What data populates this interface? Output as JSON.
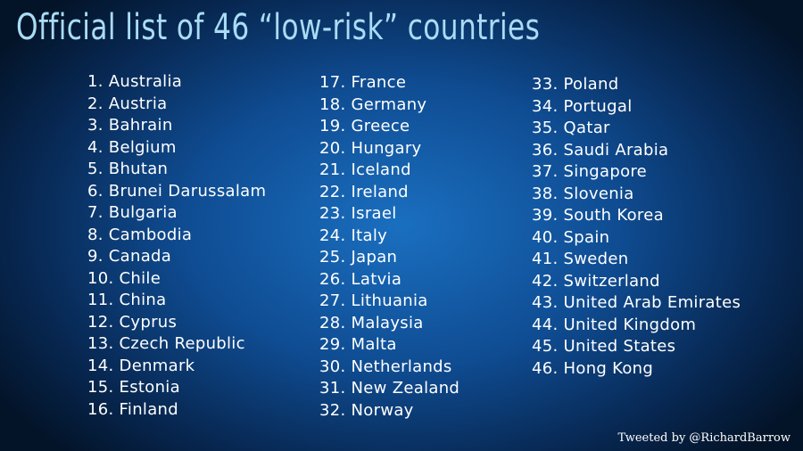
{
  "title": "Official list of 46 “low-risk” countries",
  "columns": [
    {
      "items": [
        "1. Australia",
        "2. Austria",
        "3. Bahrain",
        "4. Belgium",
        "5. Bhutan",
        "6. Brunei Darussalam",
        "7. Bulgaria",
        "8. Cambodia",
        "9. Canada",
        "10. Chile",
        "11. China",
        "12. Cyprus",
        "13. Czech Republic",
        "14. Denmark",
        "15. Estonia",
        "16. Finland"
      ]
    },
    {
      "items": [
        "17. France",
        "18. Germany",
        "19. Greece",
        "20. Hungary",
        "21. Iceland",
        "22. Ireland",
        "23. Israel",
        "24. Italy",
        "25. Japan",
        "26. Latvia",
        "27. Lithuania",
        "28. Malaysia",
        "29. Malta",
        "30. Netherlands",
        "31. New Zealand",
        "32. Norway"
      ]
    },
    {
      "items": [
        "33. Poland",
        "34. Portugal",
        "35. Qatar",
        "36. Saudi Arabia",
        "37. Singapore",
        "38. Slovenia",
        "39. South Korea",
        "40. Spain",
        "41. Sweden",
        "42. Switzerland",
        "43. United Arab Emirates",
        "44. United Kingdom",
        "45. United States",
        "46. Hong Kong"
      ]
    }
  ],
  "footer": "Tweeted by @RichardBarrow"
}
